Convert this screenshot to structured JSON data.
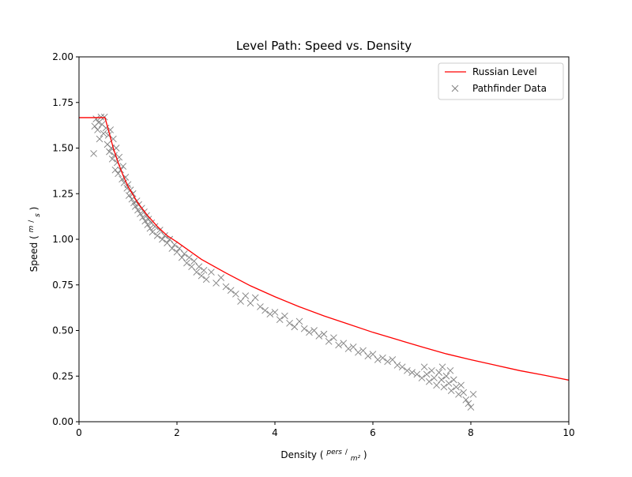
{
  "chart_data": {
    "type": "scatter",
    "title": "Level Path: Speed vs. Density",
    "xlabel": "Density",
    "xlabel_unit_numerator": "pers",
    "xlabel_unit_denominator": "m²",
    "ylabel": "Speed",
    "ylabel_unit_numerator": "m",
    "ylabel_unit_denominator": "s",
    "xlim": [
      0,
      10
    ],
    "ylim": [
      0,
      2.0
    ],
    "xticks": [
      0,
      2,
      4,
      6,
      8,
      10
    ],
    "xtick_labels": [
      "0",
      "2",
      "4",
      "6",
      "8",
      "10"
    ],
    "yticks": [
      0,
      0.25,
      0.5,
      0.75,
      1.0,
      1.25,
      1.5,
      1.75,
      2.0
    ],
    "ytick_labels": [
      "0.00",
      "0.25",
      "0.50",
      "0.75",
      "1.00",
      "1.25",
      "1.50",
      "1.75",
      "2.00"
    ],
    "grid": false,
    "legend_position": "top-right",
    "series": [
      {
        "name": "Russian Level",
        "kind": "line",
        "color": "#ff0000",
        "x": [
          0,
          0.53,
          0.6,
          0.7,
          0.8,
          0.9,
          1.0,
          1.2,
          1.4,
          1.6,
          1.8,
          2.0,
          2.5,
          3.0,
          3.5,
          4.0,
          4.5,
          5.0,
          5.5,
          6.0,
          6.5,
          7.0,
          7.5,
          8.0,
          8.5,
          9.0,
          9.5,
          10.0
        ],
        "y": [
          1.667,
          1.667,
          1.6,
          1.5,
          1.42,
          1.35,
          1.29,
          1.2,
          1.13,
          1.07,
          1.02,
          0.985,
          0.89,
          0.815,
          0.745,
          0.685,
          0.63,
          0.58,
          0.535,
          0.49,
          0.45,
          0.41,
          0.372,
          0.34,
          0.31,
          0.28,
          0.255,
          0.228
        ]
      },
      {
        "name": "Pathfinder Data",
        "kind": "scatter",
        "marker": "x",
        "color": "#808080",
        "points": [
          [
            0.3,
            1.47
          ],
          [
            0.32,
            1.62
          ],
          [
            0.35,
            1.66
          ],
          [
            0.38,
            1.6
          ],
          [
            0.4,
            1.64
          ],
          [
            0.42,
            1.55
          ],
          [
            0.45,
            1.67
          ],
          [
            0.47,
            1.63
          ],
          [
            0.5,
            1.58
          ],
          [
            0.52,
            1.67
          ],
          [
            0.55,
            1.61
          ],
          [
            0.58,
            1.52
          ],
          [
            0.6,
            1.57
          ],
          [
            0.62,
            1.48
          ],
          [
            0.64,
            1.6
          ],
          [
            0.66,
            1.5
          ],
          [
            0.68,
            1.44
          ],
          [
            0.7,
            1.55
          ],
          [
            0.72,
            1.46
          ],
          [
            0.74,
            1.38
          ],
          [
            0.76,
            1.5
          ],
          [
            0.78,
            1.42
          ],
          [
            0.8,
            1.36
          ],
          [
            0.82,
            1.45
          ],
          [
            0.85,
            1.38
          ],
          [
            0.88,
            1.33
          ],
          [
            0.9,
            1.4
          ],
          [
            0.92,
            1.31
          ],
          [
            0.95,
            1.34
          ],
          [
            0.98,
            1.28
          ],
          [
            1.0,
            1.3
          ],
          [
            1.02,
            1.24
          ],
          [
            1.05,
            1.27
          ],
          [
            1.08,
            1.22
          ],
          [
            1.1,
            1.25
          ],
          [
            1.12,
            1.2
          ],
          [
            1.15,
            1.18
          ],
          [
            1.18,
            1.21
          ],
          [
            1.2,
            1.16
          ],
          [
            1.22,
            1.19
          ],
          [
            1.25,
            1.14
          ],
          [
            1.28,
            1.17
          ],
          [
            1.3,
            1.12
          ],
          [
            1.33,
            1.15
          ],
          [
            1.35,
            1.1
          ],
          [
            1.38,
            1.13
          ],
          [
            1.4,
            1.08
          ],
          [
            1.42,
            1.11
          ],
          [
            1.45,
            1.06
          ],
          [
            1.48,
            1.09
          ],
          [
            1.5,
            1.04
          ],
          [
            1.55,
            1.07
          ],
          [
            1.6,
            1.02
          ],
          [
            1.65,
            1.05
          ],
          [
            1.7,
            1.0
          ],
          [
            1.75,
            1.02
          ],
          [
            1.8,
            0.98
          ],
          [
            1.85,
            1.0
          ],
          [
            1.9,
            0.95
          ],
          [
            1.95,
            0.97
          ],
          [
            2.0,
            0.93
          ],
          [
            2.05,
            0.95
          ],
          [
            2.1,
            0.9
          ],
          [
            2.15,
            0.92
          ],
          [
            2.2,
            0.87
          ],
          [
            2.25,
            0.9
          ],
          [
            2.3,
            0.85
          ],
          [
            2.35,
            0.88
          ],
          [
            2.4,
            0.82
          ],
          [
            2.45,
            0.85
          ],
          [
            2.5,
            0.8
          ],
          [
            2.55,
            0.83
          ],
          [
            2.6,
            0.78
          ],
          [
            2.7,
            0.82
          ],
          [
            2.8,
            0.76
          ],
          [
            2.9,
            0.79
          ],
          [
            3.0,
            0.74
          ],
          [
            3.1,
            0.72
          ],
          [
            3.2,
            0.7
          ],
          [
            3.3,
            0.66
          ],
          [
            3.4,
            0.69
          ],
          [
            3.5,
            0.65
          ],
          [
            3.6,
            0.68
          ],
          [
            3.7,
            0.63
          ],
          [
            3.8,
            0.61
          ],
          [
            3.9,
            0.59
          ],
          [
            4.0,
            0.6
          ],
          [
            4.1,
            0.56
          ],
          [
            4.2,
            0.58
          ],
          [
            4.3,
            0.54
          ],
          [
            4.4,
            0.52
          ],
          [
            4.5,
            0.55
          ],
          [
            4.6,
            0.51
          ],
          [
            4.7,
            0.49
          ],
          [
            4.8,
            0.5
          ],
          [
            4.9,
            0.47
          ],
          [
            5.0,
            0.48
          ],
          [
            5.1,
            0.44
          ],
          [
            5.2,
            0.46
          ],
          [
            5.3,
            0.42
          ],
          [
            5.4,
            0.43
          ],
          [
            5.5,
            0.4
          ],
          [
            5.6,
            0.41
          ],
          [
            5.7,
            0.38
          ],
          [
            5.8,
            0.39
          ],
          [
            5.9,
            0.36
          ],
          [
            6.0,
            0.37
          ],
          [
            6.1,
            0.34
          ],
          [
            6.2,
            0.35
          ],
          [
            6.3,
            0.33
          ],
          [
            6.4,
            0.34
          ],
          [
            6.5,
            0.31
          ],
          [
            6.6,
            0.3
          ],
          [
            6.7,
            0.28
          ],
          [
            6.8,
            0.27
          ],
          [
            6.9,
            0.26
          ],
          [
            7.0,
            0.24
          ],
          [
            7.05,
            0.3
          ],
          [
            7.1,
            0.26
          ],
          [
            7.15,
            0.22
          ],
          [
            7.2,
            0.28
          ],
          [
            7.25,
            0.24
          ],
          [
            7.3,
            0.2
          ],
          [
            7.35,
            0.27
          ],
          [
            7.4,
            0.23
          ],
          [
            7.45,
            0.19
          ],
          [
            7.5,
            0.25
          ],
          [
            7.55,
            0.21
          ],
          [
            7.6,
            0.17
          ],
          [
            7.65,
            0.23
          ],
          [
            7.7,
            0.19
          ],
          [
            7.75,
            0.15
          ],
          [
            7.8,
            0.2
          ],
          [
            7.85,
            0.16
          ],
          [
            7.9,
            0.12
          ],
          [
            7.95,
            0.1
          ],
          [
            8.0,
            0.08
          ],
          [
            8.05,
            0.15
          ],
          [
            7.42,
            0.3
          ],
          [
            7.58,
            0.28
          ]
        ]
      }
    ]
  }
}
